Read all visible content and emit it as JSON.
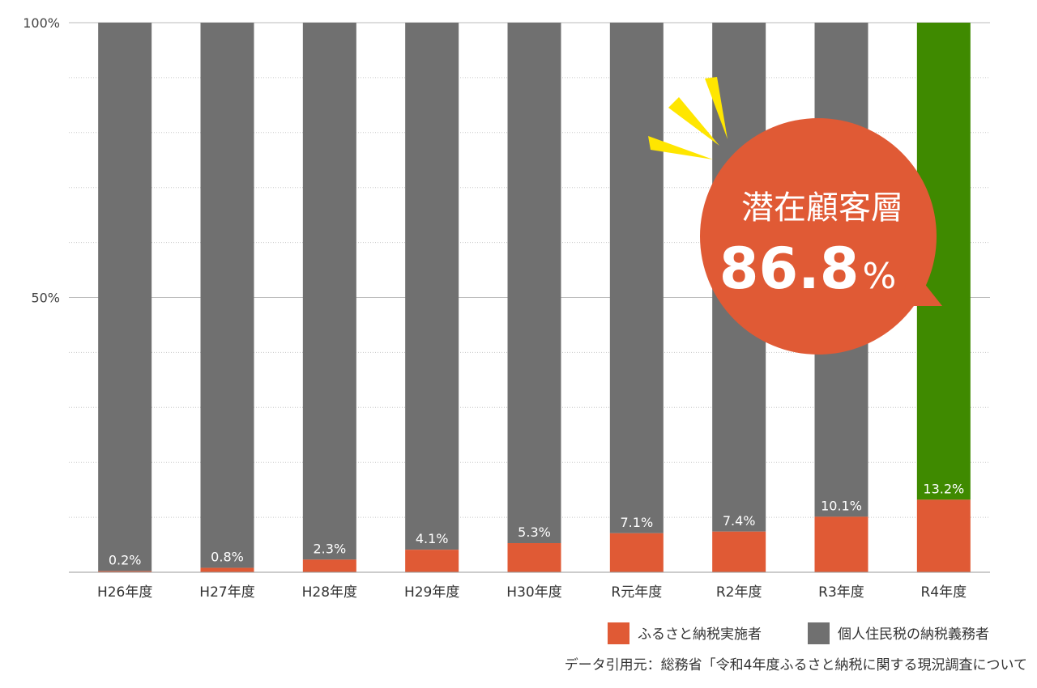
{
  "chart_data": {
    "type": "bar",
    "stacked": true,
    "categories": [
      "H26年度",
      "H27年度",
      "H28年度",
      "H29年度",
      "H30年度",
      "R元年度",
      "R2年度",
      "R3年度",
      "R4年度"
    ],
    "series": [
      {
        "name": "ふるさと納税実施者",
        "values": [
          0.2,
          0.8,
          2.3,
          4.1,
          5.3,
          7.1,
          7.4,
          10.1,
          13.2
        ],
        "color": "#e05a35"
      },
      {
        "name": "個人住民税の納税義務者",
        "values": [
          99.8,
          99.2,
          97.7,
          95.9,
          94.7,
          92.9,
          92.6,
          89.9,
          86.8
        ],
        "color": "#707070"
      }
    ],
    "highlight": {
      "category": "R4年度",
      "color": "#3f8a00"
    },
    "data_labels": [
      "0.2%",
      "0.8%",
      "2.3%",
      "4.1%",
      "5.3%",
      "7.1%",
      "7.4%",
      "10.1%",
      "13.2%"
    ],
    "yticks": [
      "100%",
      "50%"
    ],
    "ylim": [
      0,
      100
    ],
    "grid": true,
    "legend_position": "bottom-right",
    "title": "",
    "xlabel": "",
    "ylabel": ""
  },
  "callout": {
    "title": "潜在顧客層",
    "number": "86.8",
    "unit": "%",
    "color": "#e05a35",
    "spark_color": "#ffe600"
  },
  "source": "データ引用元：総務省「令和4年度ふるさと納税に関する現況調査について"
}
